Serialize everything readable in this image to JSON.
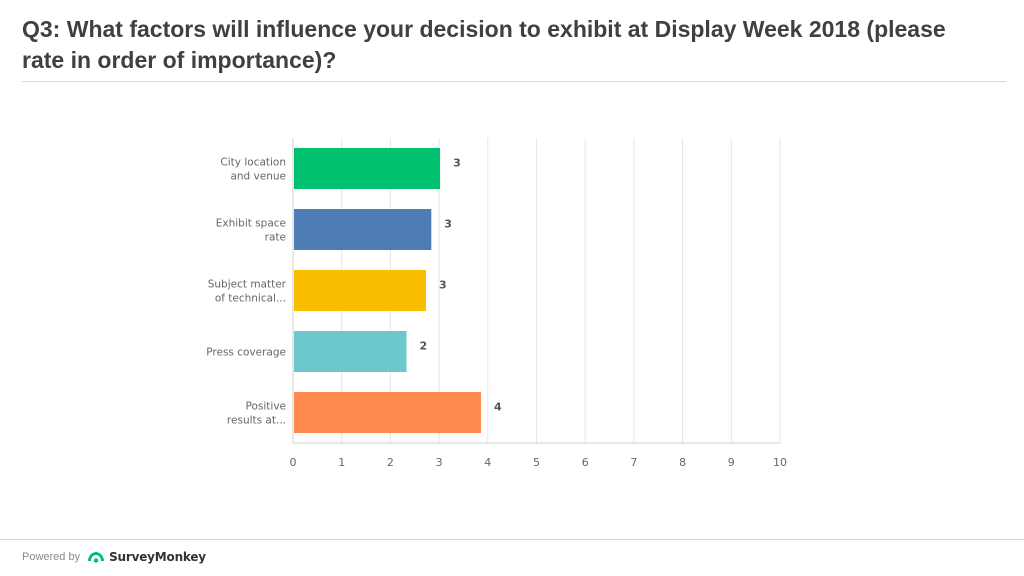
{
  "page": {
    "title": "Q3: What factors will influence your decision to exhibit at Display Week 2018 (please rate in order of importance)?"
  },
  "footer": {
    "powered_by": "Powered by",
    "brand": "SurveyMonkey",
    "brand_icon": "surveymonkey-logo-icon",
    "brand_color": "#00bf6f"
  },
  "chart_data": {
    "type": "bar",
    "orientation": "horizontal",
    "categories": [
      [
        "City location",
        "and venue"
      ],
      [
        "Exhibit space",
        "rate"
      ],
      [
        "Subject matter",
        "of technical..."
      ],
      [
        "Press coverage"
      ],
      [
        "Positive",
        "results at..."
      ]
    ],
    "values": [
      3.02,
      2.84,
      2.73,
      2.33,
      3.86
    ],
    "data_labels": [
      "3",
      "3",
      "3",
      "2",
      "4"
    ],
    "colors": [
      "#00bf6f",
      "#507cb6",
      "#f9be00",
      "#6bc8cd",
      "#ff8b4f"
    ],
    "xlim": [
      0,
      10
    ],
    "x_ticks": [
      "0",
      "1",
      "2",
      "3",
      "4",
      "5",
      "6",
      "7",
      "8",
      "9",
      "10"
    ],
    "grid": true
  }
}
